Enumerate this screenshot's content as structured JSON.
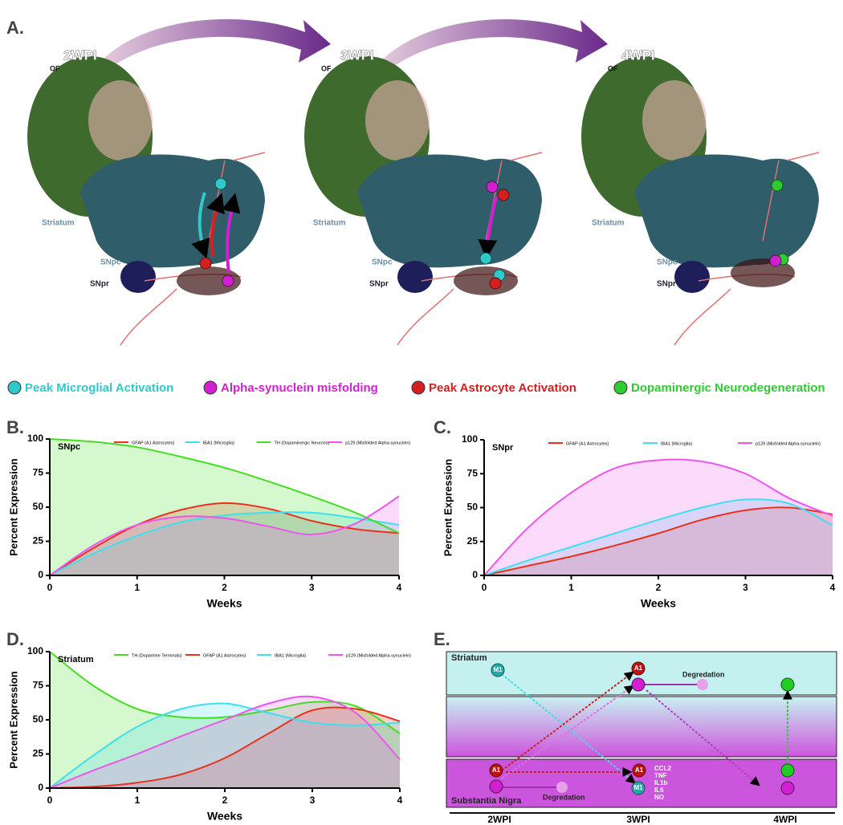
{
  "panel_a": {
    "label": "A.",
    "timepoints": [
      {
        "title": "2WPI",
        "labels": [
          "OF",
          "Striatum",
          "SNpc",
          "SNpr"
        ]
      },
      {
        "title": "3WPI",
        "labels": [
          "OF",
          "Striatum",
          "SNpc",
          "SNpr"
        ]
      },
      {
        "title": "4WPI",
        "labels": [
          "OF",
          "Striatum",
          "SNpc",
          "SNpr"
        ]
      }
    ]
  },
  "legend": [
    {
      "label": "Peak Microglial Activation",
      "color": "#2fc9c9"
    },
    {
      "label": "Alpha-synuclein misfolding",
      "color": "#d21fd2"
    },
    {
      "label": "Peak Astrocyte Activation",
      "color": "#d42020"
    },
    {
      "label": "Dopaminergic Neurodegeneration",
      "color": "#2ecc2e"
    }
  ],
  "chart_data": [
    {
      "type": "area",
      "panel_label": "B.",
      "annotation": "SNpc",
      "xlabel": "Weeks",
      "ylabel": "Percent Expression",
      "x": [
        0,
        0.5,
        1,
        1.5,
        2,
        2.5,
        3,
        3.5,
        4
      ],
      "xlim": [
        0,
        4
      ],
      "xticks": [
        0,
        1,
        2,
        3,
        4
      ],
      "ylim": [
        0,
        100
      ],
      "yticks": [
        0,
        25,
        50,
        75,
        100
      ],
      "series": [
        {
          "name": "GFAP (A1 Astrocytes)",
          "color": "#e8321e",
          "values": [
            0,
            20,
            37,
            48,
            53,
            49,
            40,
            34,
            31
          ]
        },
        {
          "name": "IBA1 (Microglia)",
          "color": "#3ee0f0",
          "values": [
            0,
            16,
            29,
            39,
            44,
            46,
            46,
            42,
            37
          ]
        },
        {
          "name": "TH (Dopaminergic Neurons)",
          "color": "#44dd22",
          "values": [
            100,
            98,
            94,
            87,
            79,
            69,
            58,
            46,
            31
          ]
        },
        {
          "name": "p129 (Misfolded Alpha-synuclein)",
          "color": "#ee55ee",
          "values": [
            0,
            22,
            37,
            43,
            42,
            36,
            30,
            38,
            58
          ]
        }
      ]
    },
    {
      "type": "area",
      "panel_label": "C.",
      "annotation": "SNpr",
      "xlabel": "Weeks",
      "ylabel": "Percent Expression",
      "x": [
        0,
        0.5,
        1,
        1.5,
        2,
        2.5,
        3,
        3.5,
        4
      ],
      "xlim": [
        0,
        4
      ],
      "xticks": [
        0,
        1,
        2,
        3,
        4
      ],
      "ylim": [
        0,
        100
      ],
      "yticks": [
        0,
        25,
        50,
        75,
        100
      ],
      "series": [
        {
          "name": "GFAP (A1 Astrocytes)",
          "color": "#e8321e",
          "values": [
            0,
            7,
            14,
            22,
            31,
            41,
            48,
            50,
            45
          ]
        },
        {
          "name": "IBA1 (Microglia)",
          "color": "#3ee0f0",
          "values": [
            0,
            11,
            21,
            31,
            41,
            50,
            56,
            53,
            37
          ]
        },
        {
          "name": "p129 (Misfolded Alpha-synuclein)",
          "color": "#ee55ee",
          "values": [
            0,
            35,
            61,
            79,
            85,
            84,
            75,
            57,
            44
          ]
        }
      ]
    },
    {
      "type": "area",
      "panel_label": "D.",
      "annotation": "Striatum",
      "xlabel": "Weeks",
      "ylabel": "Percent Expression",
      "x": [
        0,
        0.5,
        1,
        1.5,
        2,
        2.5,
        3,
        3.5,
        4
      ],
      "xlim": [
        0,
        4
      ],
      "xticks": [
        0,
        1,
        2,
        3,
        4
      ],
      "ylim": [
        0,
        100
      ],
      "yticks": [
        0,
        25,
        50,
        75,
        100
      ],
      "series": [
        {
          "name": "TH (Dopamine Terminals)",
          "color": "#44dd22",
          "values": [
            100,
            75,
            58,
            52,
            52,
            57,
            63,
            60,
            40
          ]
        },
        {
          "name": "GFAP (A1 Astrocytes)",
          "color": "#e8321e",
          "values": [
            0,
            1,
            4,
            10,
            22,
            40,
            57,
            58,
            49
          ]
        },
        {
          "name": "IBA1 (Microglia)",
          "color": "#3ee0f0",
          "values": [
            0,
            24,
            45,
            58,
            62,
            55,
            48,
            46,
            48
          ]
        },
        {
          "name": "p129 (Misfolded Alpha-synuclein)",
          "color": "#ee55ee",
          "values": [
            0,
            13,
            25,
            38,
            50,
            62,
            67,
            55,
            21
          ]
        }
      ]
    }
  ],
  "panel_e": {
    "label": "E.",
    "regions": [
      "Striatum",
      "Substantia Nigra"
    ],
    "nodes": [
      "M1",
      "A1",
      "A1",
      "A1",
      "M1"
    ],
    "degradation": [
      "Degredation",
      "Degredation"
    ],
    "cytokines": [
      "CCL2",
      "TNF",
      "IL1b",
      "IL6",
      "NO"
    ],
    "timeline": [
      "2WPI",
      "3WPI",
      "4WPI"
    ]
  }
}
